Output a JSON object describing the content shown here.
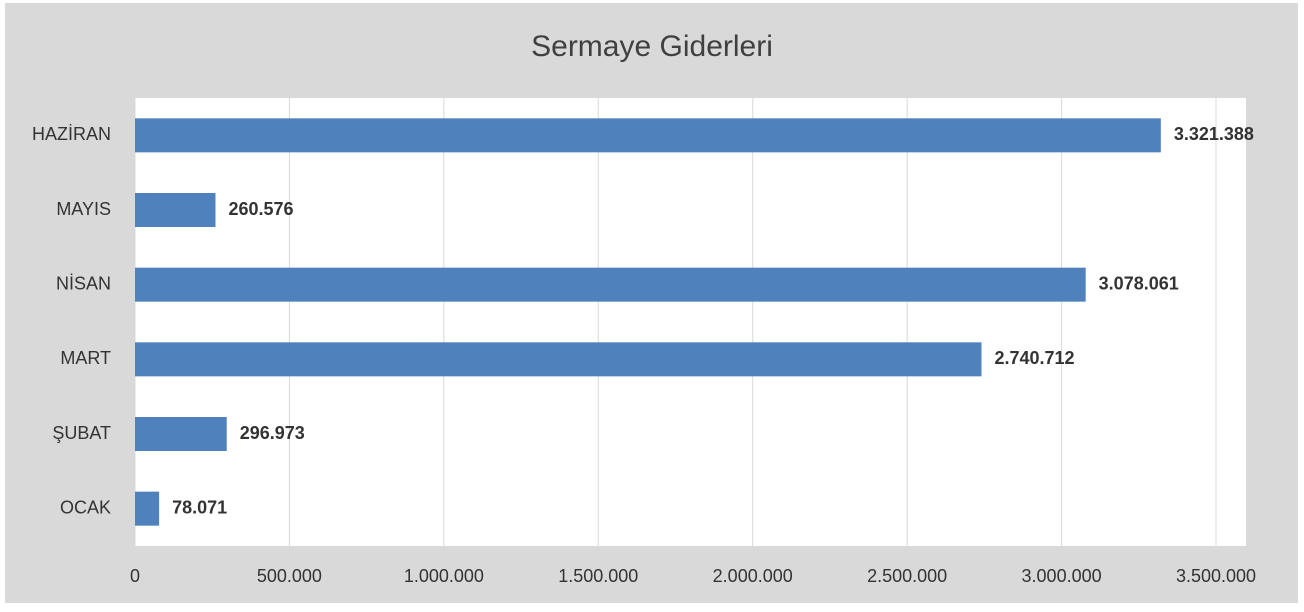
{
  "chart_data": {
    "type": "barh",
    "title": "Sermaye Giderleri",
    "categories": [
      "OCAK",
      "ŞUBAT",
      "MART",
      "NİSAN",
      "MAYIS",
      "HAZİRAN"
    ],
    "values": [
      78071,
      296973,
      2740712,
      3078061,
      260576,
      3321388
    ],
    "value_labels": [
      "78.071",
      "296.973",
      "2.740.712",
      "3.078.061",
      "260.576",
      "3.321.388"
    ],
    "color": "#4f81bd",
    "xlim": [
      0,
      3500000
    ],
    "xticks": [
      0,
      {
        "value": 500000,
        "label": "500.000"
      },
      {
        "value": 1000000,
        "label": "1.000.000"
      },
      {
        "value": 1500000,
        "label": "1.500.000"
      },
      {
        "value": 2000000,
        "label": "2.000.000"
      },
      {
        "value": 2500000,
        "label": "2.500.000"
      },
      {
        "value": 3000000,
        "label": "3.000.000"
      },
      {
        "value": 3500000,
        "label": "3.500.000"
      }
    ],
    "grid": true
  }
}
